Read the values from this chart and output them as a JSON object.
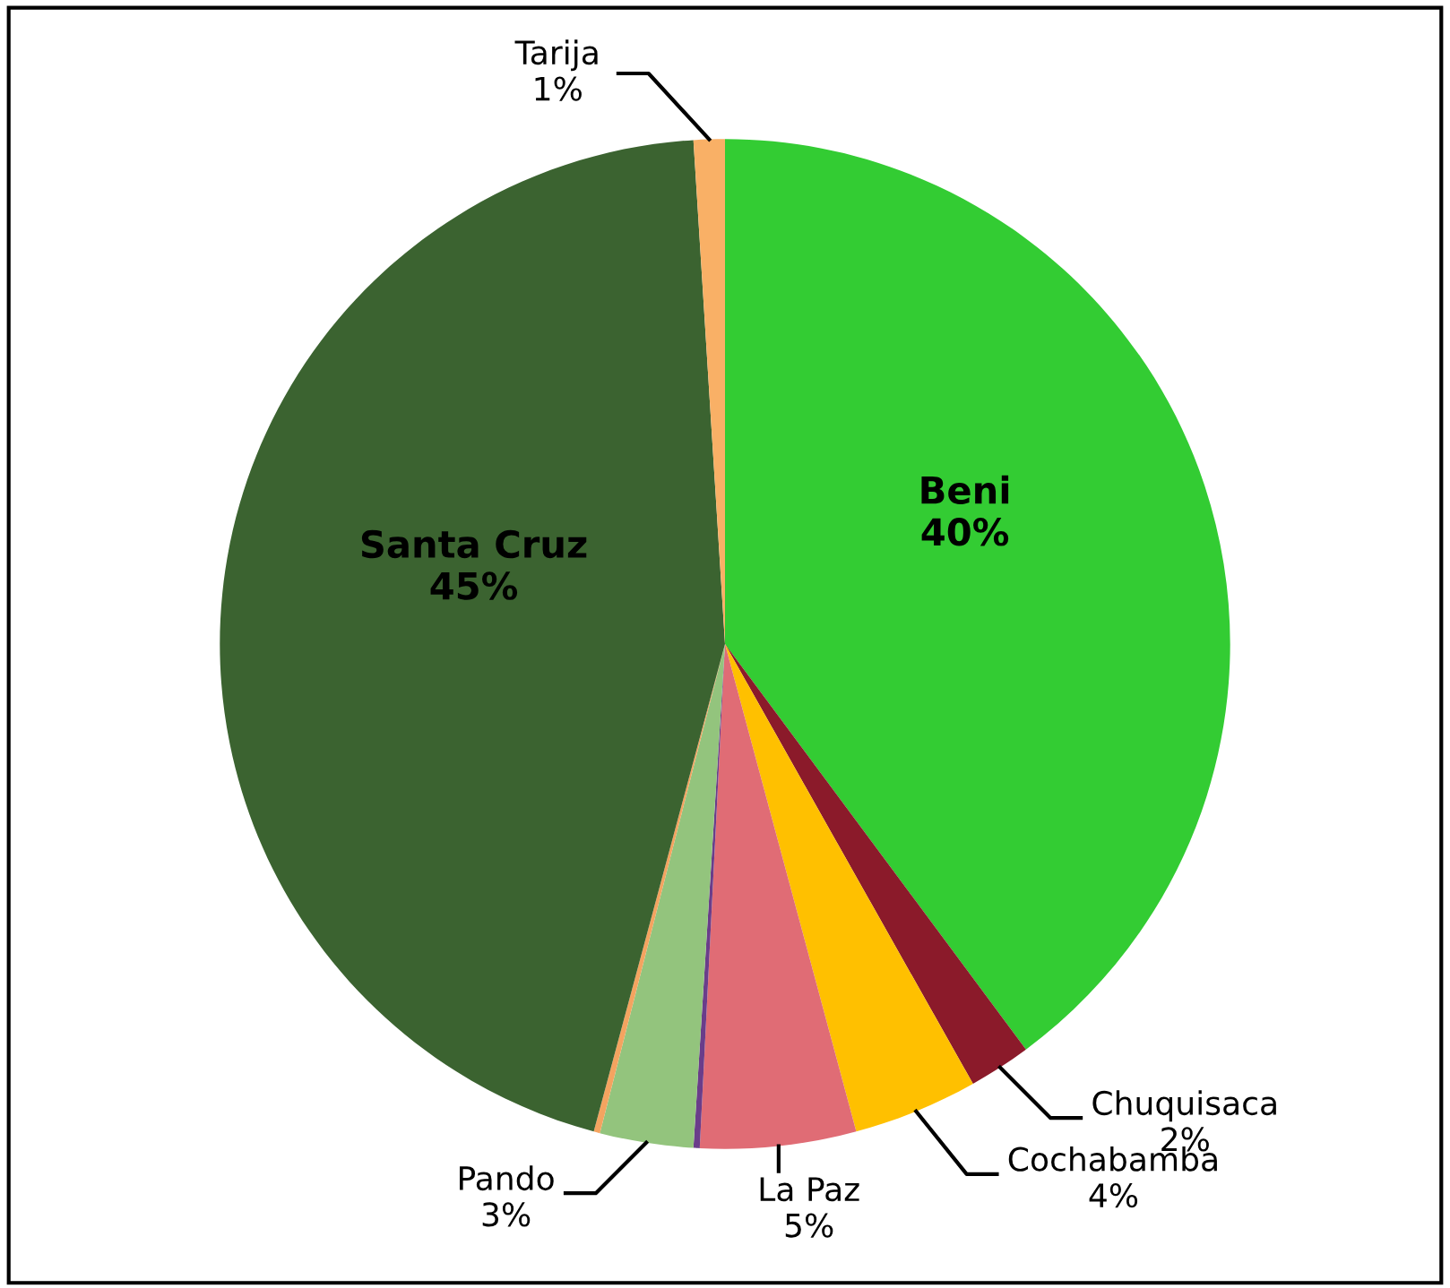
{
  "chart_data": {
    "type": "pie",
    "categories": [
      "Beni",
      "Chuquisaca",
      "Cochabamba",
      "La Paz",
      null,
      "Pando",
      null,
      "Santa Cruz",
      "Tarija"
    ],
    "values": [
      40,
      2,
      4,
      5,
      0.2,
      3,
      0.2,
      45,
      1
    ],
    "value_labels": [
      "40%",
      "2%",
      "4%",
      "5%",
      null,
      "3%",
      null,
      "45%",
      "1%"
    ],
    "colors": [
      "#33cc33",
      "#8b1a2a",
      "#ffc000",
      "#e06c75",
      "#6a3d8a",
      "#93c47d",
      "#f4a460",
      "#3b6330",
      "#f9b066"
    ]
  }
}
